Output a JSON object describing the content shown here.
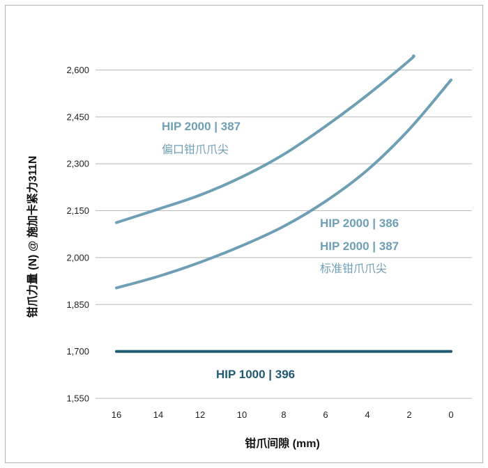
{
  "chart_data": {
    "type": "line",
    "xlabel": "钳爪间隙 (mm)",
    "ylabel": "钳爪力量 (N) @ 施加卡紧力311N",
    "xlim": [
      17,
      -1
    ],
    "ylim": [
      1550,
      2650
    ],
    "x_ticks": [
      "16",
      "14",
      "12",
      "10",
      "8",
      "6",
      "4",
      "2",
      "0"
    ],
    "y_ticks": [
      "1,550",
      "1,700",
      "1,850",
      "2,000",
      "2,150",
      "2,300",
      "2,450",
      "2,600"
    ],
    "grid": "horizontal",
    "series": [
      {
        "name": "HIP 2000 | 387 偏口钳爪爪尖",
        "color": "#6e9fb4",
        "x": [
          16,
          14,
          12,
          10,
          8,
          6,
          4,
          2,
          1.8
        ],
        "y": [
          2112,
          2155,
          2200,
          2258,
          2330,
          2420,
          2520,
          2630,
          2645
        ]
      },
      {
        "name": "HIP 2000 | 386 / HIP 2000 | 387 标准钳爪爪尖",
        "color": "#6e9fb4",
        "x": [
          16,
          14,
          12,
          10,
          8,
          6,
          4,
          2,
          0
        ],
        "y": [
          1903,
          1940,
          1985,
          2038,
          2100,
          2180,
          2280,
          2410,
          2568
        ]
      },
      {
        "name": "HIP 1000 | 396",
        "color": "#1e5a72",
        "x": [
          16,
          0
        ],
        "y": [
          1700,
          1700
        ]
      }
    ],
    "annotations": {
      "offset_label_1": "HIP 2000 | 387",
      "offset_label_2": "偏口钳爪爪尖",
      "standard_label_1": "HIP 2000 | 386",
      "standard_label_2": "HIP 2000 | 387",
      "standard_label_3": "标准钳爪爪尖",
      "flat_label": "HIP 1000 | 396"
    }
  }
}
